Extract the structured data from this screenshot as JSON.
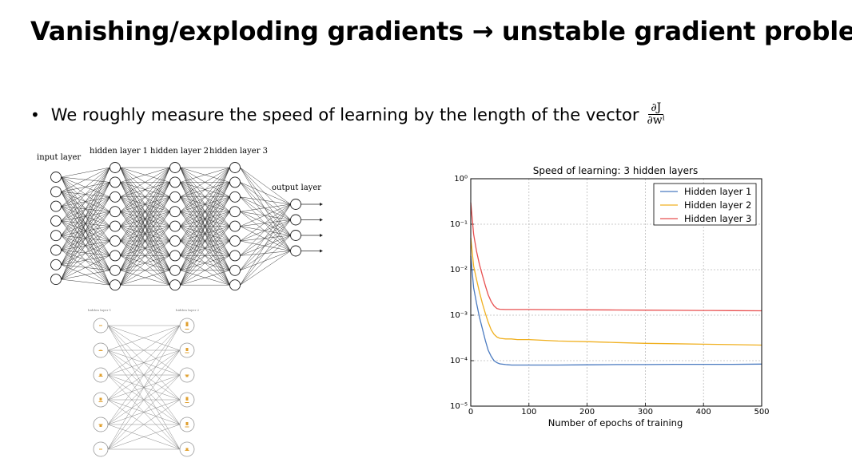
{
  "slide": {
    "title": "Vanishing/exploding gradients → unstable gradient problem",
    "bullet_text": "We roughly measure the speed of learning by the length of the vector",
    "formula_numerator": "∂J",
    "formula_denominator": "∂wˡ"
  },
  "network_diagram": {
    "input_label": "input layer",
    "hidden_labels": [
      "hidden layer 1",
      "hidden layer 2",
      "hidden layer 3"
    ],
    "output_label": "output layer"
  },
  "small_diagram": {
    "left_label": "hidden layer 1",
    "right_label": "hidden layer 2"
  },
  "chart_data": {
    "type": "line",
    "title": "Speed of learning: 3 hidden layers",
    "xlabel": "Number of epochs of training",
    "ylabel": "",
    "xlim": [
      0,
      500
    ],
    "ylim": [
      1e-05,
      1
    ],
    "yscale": "log",
    "xticks": [
      0,
      100,
      200,
      300,
      400,
      500
    ],
    "ytick_labels": [
      "10⁰",
      "10⁻¹",
      "10⁻²",
      "10⁻³",
      "10⁻⁴",
      "10⁻⁵"
    ],
    "grid": true,
    "legend_position": "top-right",
    "series": [
      {
        "name": "Hidden layer 1",
        "color": "#4a7ac0",
        "x": [
          0,
          5,
          10,
          15,
          20,
          25,
          30,
          35,
          40,
          45,
          50,
          60,
          70,
          80,
          100,
          150,
          200,
          250,
          300,
          350,
          400,
          450,
          500
        ],
        "y": [
          0.02,
          0.004,
          0.0018,
          0.0009,
          0.0005,
          0.00028,
          0.00017,
          0.000125,
          0.0001,
          9e-05,
          8.5e-05,
          8.2e-05,
          8e-05,
          8e-05,
          8e-05,
          8e-05,
          8.1e-05,
          8.2e-05,
          8.2e-05,
          8.3e-05,
          8.3e-05,
          8.3e-05,
          8.4e-05
        ]
      },
      {
        "name": "Hidden layer 2",
        "color": "#f0b020",
        "x": [
          0,
          5,
          10,
          15,
          20,
          25,
          30,
          35,
          40,
          45,
          50,
          60,
          70,
          80,
          100,
          150,
          200,
          250,
          300,
          350,
          400,
          450,
          500
        ],
        "y": [
          0.05,
          0.012,
          0.006,
          0.0032,
          0.0018,
          0.0011,
          0.0007,
          0.00048,
          0.00038,
          0.00033,
          0.00031,
          0.0003,
          0.0003,
          0.00029,
          0.00029,
          0.00027,
          0.000262,
          0.00025,
          0.00024,
          0.000235,
          0.00023,
          0.000225,
          0.00022
        ]
      },
      {
        "name": "Hidden layer 3",
        "color": "#e85050",
        "x": [
          0,
          5,
          10,
          15,
          20,
          25,
          30,
          35,
          40,
          45,
          50,
          60,
          70,
          80,
          100,
          150,
          200,
          250,
          300,
          350,
          400,
          450,
          500
        ],
        "y": [
          0.3,
          0.06,
          0.025,
          0.013,
          0.0075,
          0.0045,
          0.0028,
          0.002,
          0.0016,
          0.0014,
          0.00135,
          0.00133,
          0.00133,
          0.00133,
          0.00133,
          0.00132,
          0.00131,
          0.0013,
          0.00129,
          0.00128,
          0.00127,
          0.00126,
          0.00125
        ]
      }
    ]
  }
}
